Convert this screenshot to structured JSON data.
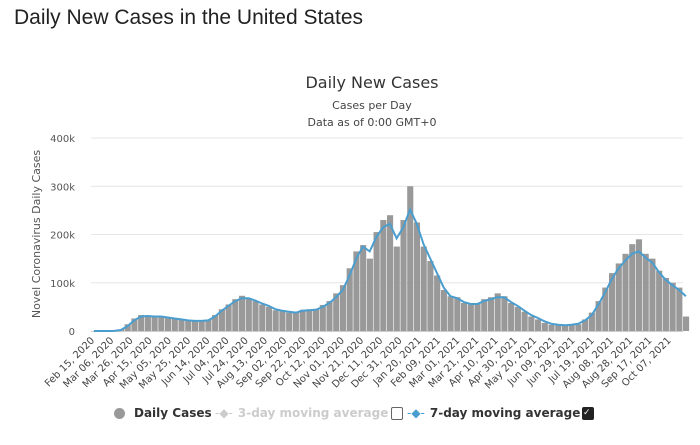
{
  "page_title": "Daily New Cases in the United States",
  "chart_data": {
    "type": "bar",
    "title": "Daily New Cases",
    "subtitle": [
      "Cases per Day",
      "Data as of 0:00 GMT+0"
    ],
    "ylabel": "Novel Coronavirus Daily Cases",
    "xlabel": "",
    "ylim": [
      0,
      400000
    ],
    "y_ticks": [
      "0",
      "100k",
      "200k",
      "300k",
      "400k"
    ],
    "grid": true,
    "legend_position": "bottom",
    "start_date": "Feb 15, 2020",
    "x_ticks": [
      "Feb 15, 2020",
      "Mar 06, 2020",
      "Mar 26, 2020",
      "Apr 15, 2020",
      "May 05, 2020",
      "May 25, 2020",
      "Jun 14, 2020",
      "Jul 04, 2020",
      "Jul 24, 2020",
      "Aug 13, 2020",
      "Sep 02, 2020",
      "Sep 22, 2020",
      "Oct 12, 2020",
      "Nov 01, 2020",
      "Nov 21, 2020",
      "Dec 11, 2020",
      "Dec 31, 2020",
      "Jan 20, 2021",
      "Feb 09, 2021",
      "Mar 01, 2021",
      "Mar 21, 2021",
      "Apr 10, 2021",
      "Apr 30, 2021",
      "May 20, 2021",
      "Jun 09, 2021",
      "Jun 29, 2021",
      "Jul 19, 2021",
      "Aug 08, 2021",
      "Aug 28, 2021",
      "Sep 17, 2021",
      "Oct 07, 2021"
    ],
    "series": [
      {
        "name": "Daily Cases",
        "color": "#999999",
        "sampling": "weekly",
        "values": [
          0,
          0,
          0,
          300,
          3000,
          14000,
          26000,
          33000,
          30000,
          31000,
          31000,
          27000,
          25000,
          24000,
          21000,
          22000,
          20000,
          24000,
          33000,
          45000,
          55000,
          66000,
          73000,
          68000,
          62000,
          55000,
          50000,
          43000,
          41000,
          38000,
          40000,
          44000,
          45000,
          46000,
          54000,
          62000,
          78000,
          95000,
          130000,
          165000,
          178000,
          150000,
          205000,
          230000,
          240000,
          175000,
          230000,
          300000,
          225000,
          175000,
          145000,
          115000,
          85000,
          72000,
          70000,
          58000,
          55000,
          57000,
          66000,
          70000,
          78000,
          72000,
          58000,
          50000,
          40000,
          30000,
          24000,
          17000,
          13000,
          12000,
          11000,
          12000,
          14000,
          24000,
          38000,
          62000,
          90000,
          120000,
          140000,
          160000,
          180000,
          190000,
          160000,
          150000,
          125000,
          110000,
          100000,
          90000,
          30000
        ]
      },
      {
        "name": "3-day moving average",
        "color": "#cccccc",
        "enabled": false
      },
      {
        "name": "7-day moving average",
        "color": "#4a9ecf",
        "enabled": true,
        "sampling": "weekly",
        "values": [
          0,
          0,
          0,
          200,
          2000,
          10000,
          22000,
          30000,
          31000,
          30000,
          30000,
          28000,
          26000,
          24000,
          22000,
          21000,
          21000,
          22000,
          30000,
          42000,
          52000,
          62000,
          68000,
          68000,
          63000,
          57000,
          52000,
          45000,
          42000,
          40000,
          38000,
          42000,
          43000,
          44000,
          50000,
          58000,
          70000,
          85000,
          115000,
          150000,
          175000,
          165000,
          195000,
          215000,
          222000,
          192000,
          215000,
          252000,
          222000,
          180000,
          150000,
          120000,
          90000,
          72000,
          68000,
          60000,
          56000,
          56000,
          62000,
          66000,
          70000,
          70000,
          60000,
          52000,
          42000,
          33000,
          27000,
          20000,
          15000,
          13000,
          12000,
          13000,
          15000,
          22000,
          33000,
          55000,
          80000,
          108000,
          130000,
          146000,
          160000,
          165000,
          152000,
          142000,
          122000,
          106000,
          95000,
          85000,
          72000
        ]
      }
    ]
  },
  "legend": {
    "daily": "Daily Cases",
    "avg3": "3-day moving average",
    "avg7": "7-day moving average"
  }
}
